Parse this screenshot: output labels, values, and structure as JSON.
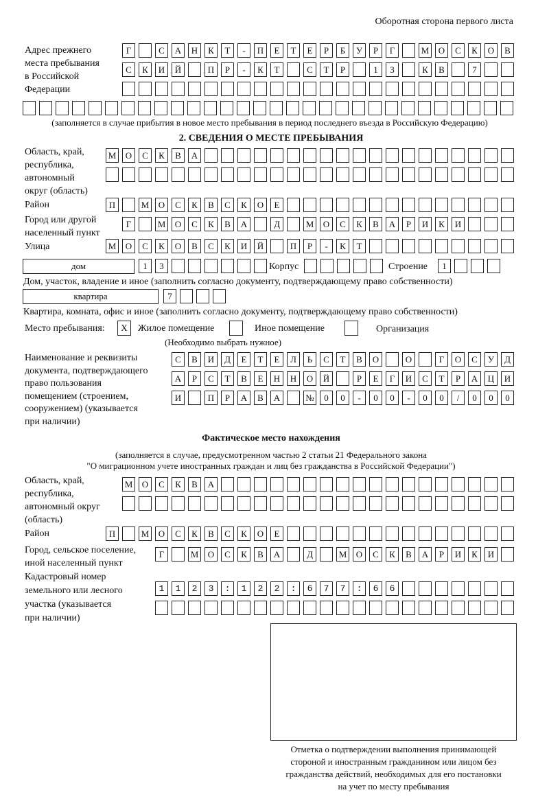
{
  "page_header": "Оборотная сторона первого листа",
  "previous_address": {
    "label": [
      "Адрес прежнего",
      "места пребывания",
      "в Российской",
      "Федерации"
    ],
    "rows": [
      "Г САНКТ-ПЕТЕРБУРГ МОСКОВ",
      "СКИЙ ПР-КТ СТР 13 КВ 7  ",
      "                        ",
      "                              "
    ],
    "note": "(заполняется в случае прибытия в новое место пребывания в период последнего въезда в Российскую Федерацию)"
  },
  "section2": {
    "title": "2. СВЕДЕНИЯ О МЕСТЕ ПРЕБЫВАНИЯ",
    "region_label": [
      "Область, край,",
      "республика,",
      "автономный",
      "округ (область)"
    ],
    "region_rows": [
      "МОСКВА                   ",
      "                         "
    ],
    "district_label": "Район",
    "district_row": "П МОСКВСКОЕ              ",
    "city_label": [
      "Город или другой",
      "населенный пункт"
    ],
    "city_row": "Г МОСКВА Д МОСКВАРИКИ   ",
    "street_label": "Улица",
    "street_row": "МОСКОВСКИЙ ПР-КТ         ",
    "house_type": "дом",
    "house_row": "13      ",
    "korpus_label": "Корпус",
    "korpus_row": "     ",
    "building_label": "Строение",
    "building_row": "1   ",
    "house_note": "Дом, участок, владение и иное (заполнить согласно документу, подтверждающему право собственности)",
    "apt_type": "квартира",
    "apt_row": "7   ",
    "apt_note": "Квартира, комната, офис и иное (заполнить согласно документу, подтверждающему право собственности)",
    "place_label": "Место пребывания:",
    "place_options": [
      {
        "label": "Жилое помещение",
        "mark": "Х",
        "checked": true
      },
      {
        "label": "Иное помещение",
        "mark": "",
        "checked": false
      },
      {
        "label": "Организация",
        "mark": "",
        "checked": false
      }
    ],
    "place_note": "(Необходимо выбрать нужное)",
    "doc_label": [
      "Наименование и реквизиты",
      "документа, подтверждающего",
      "право пользования",
      "помещением (строением,",
      "сооружением) (указывается",
      "при наличии)"
    ],
    "doc_rows": [
      "СВИДЕТЕЛЬСТВО О ГОСУД",
      "АРСТВЕННОЙ РЕГИСТРАЦИ",
      "И ПРАВА №00-00-00/000"
    ]
  },
  "actual": {
    "title": "Фактическое место нахождения",
    "note1": "(заполняется в случае, предусмотренном частью 2 статьи 21 Федерального закона",
    "note2": "\"О миграционном учете иностранных граждан и лиц без гражданства в Российской Федерации\")",
    "region_label": [
      "Область, край,",
      "республика,",
      "автономный округ",
      "(область)"
    ],
    "region_rows": [
      "МОСКВА                  ",
      "                        "
    ],
    "district_label": "Район",
    "district_row": "П МОСКВСКОЕ              ",
    "city_label": [
      "Город, сельское поселение,",
      "иной населенный пункт"
    ],
    "city_row": "Г МОСКВА Д МОСКВАРИКИ ",
    "cadastral_label": [
      "Кадастровый номер",
      "земельного или лесного",
      "участка (указывается",
      "при наличии)"
    ],
    "cadastral_rows": [
      "1123:122:677:66       ",
      "                      "
    ]
  },
  "stamp_caption": [
    "Отметка о подтверждении выполнения принимающей",
    "стороной и иностранным гражданином или лицом без",
    "гражданства действий, необходимых для его постановки",
    "на учет по месту пребывания"
  ]
}
